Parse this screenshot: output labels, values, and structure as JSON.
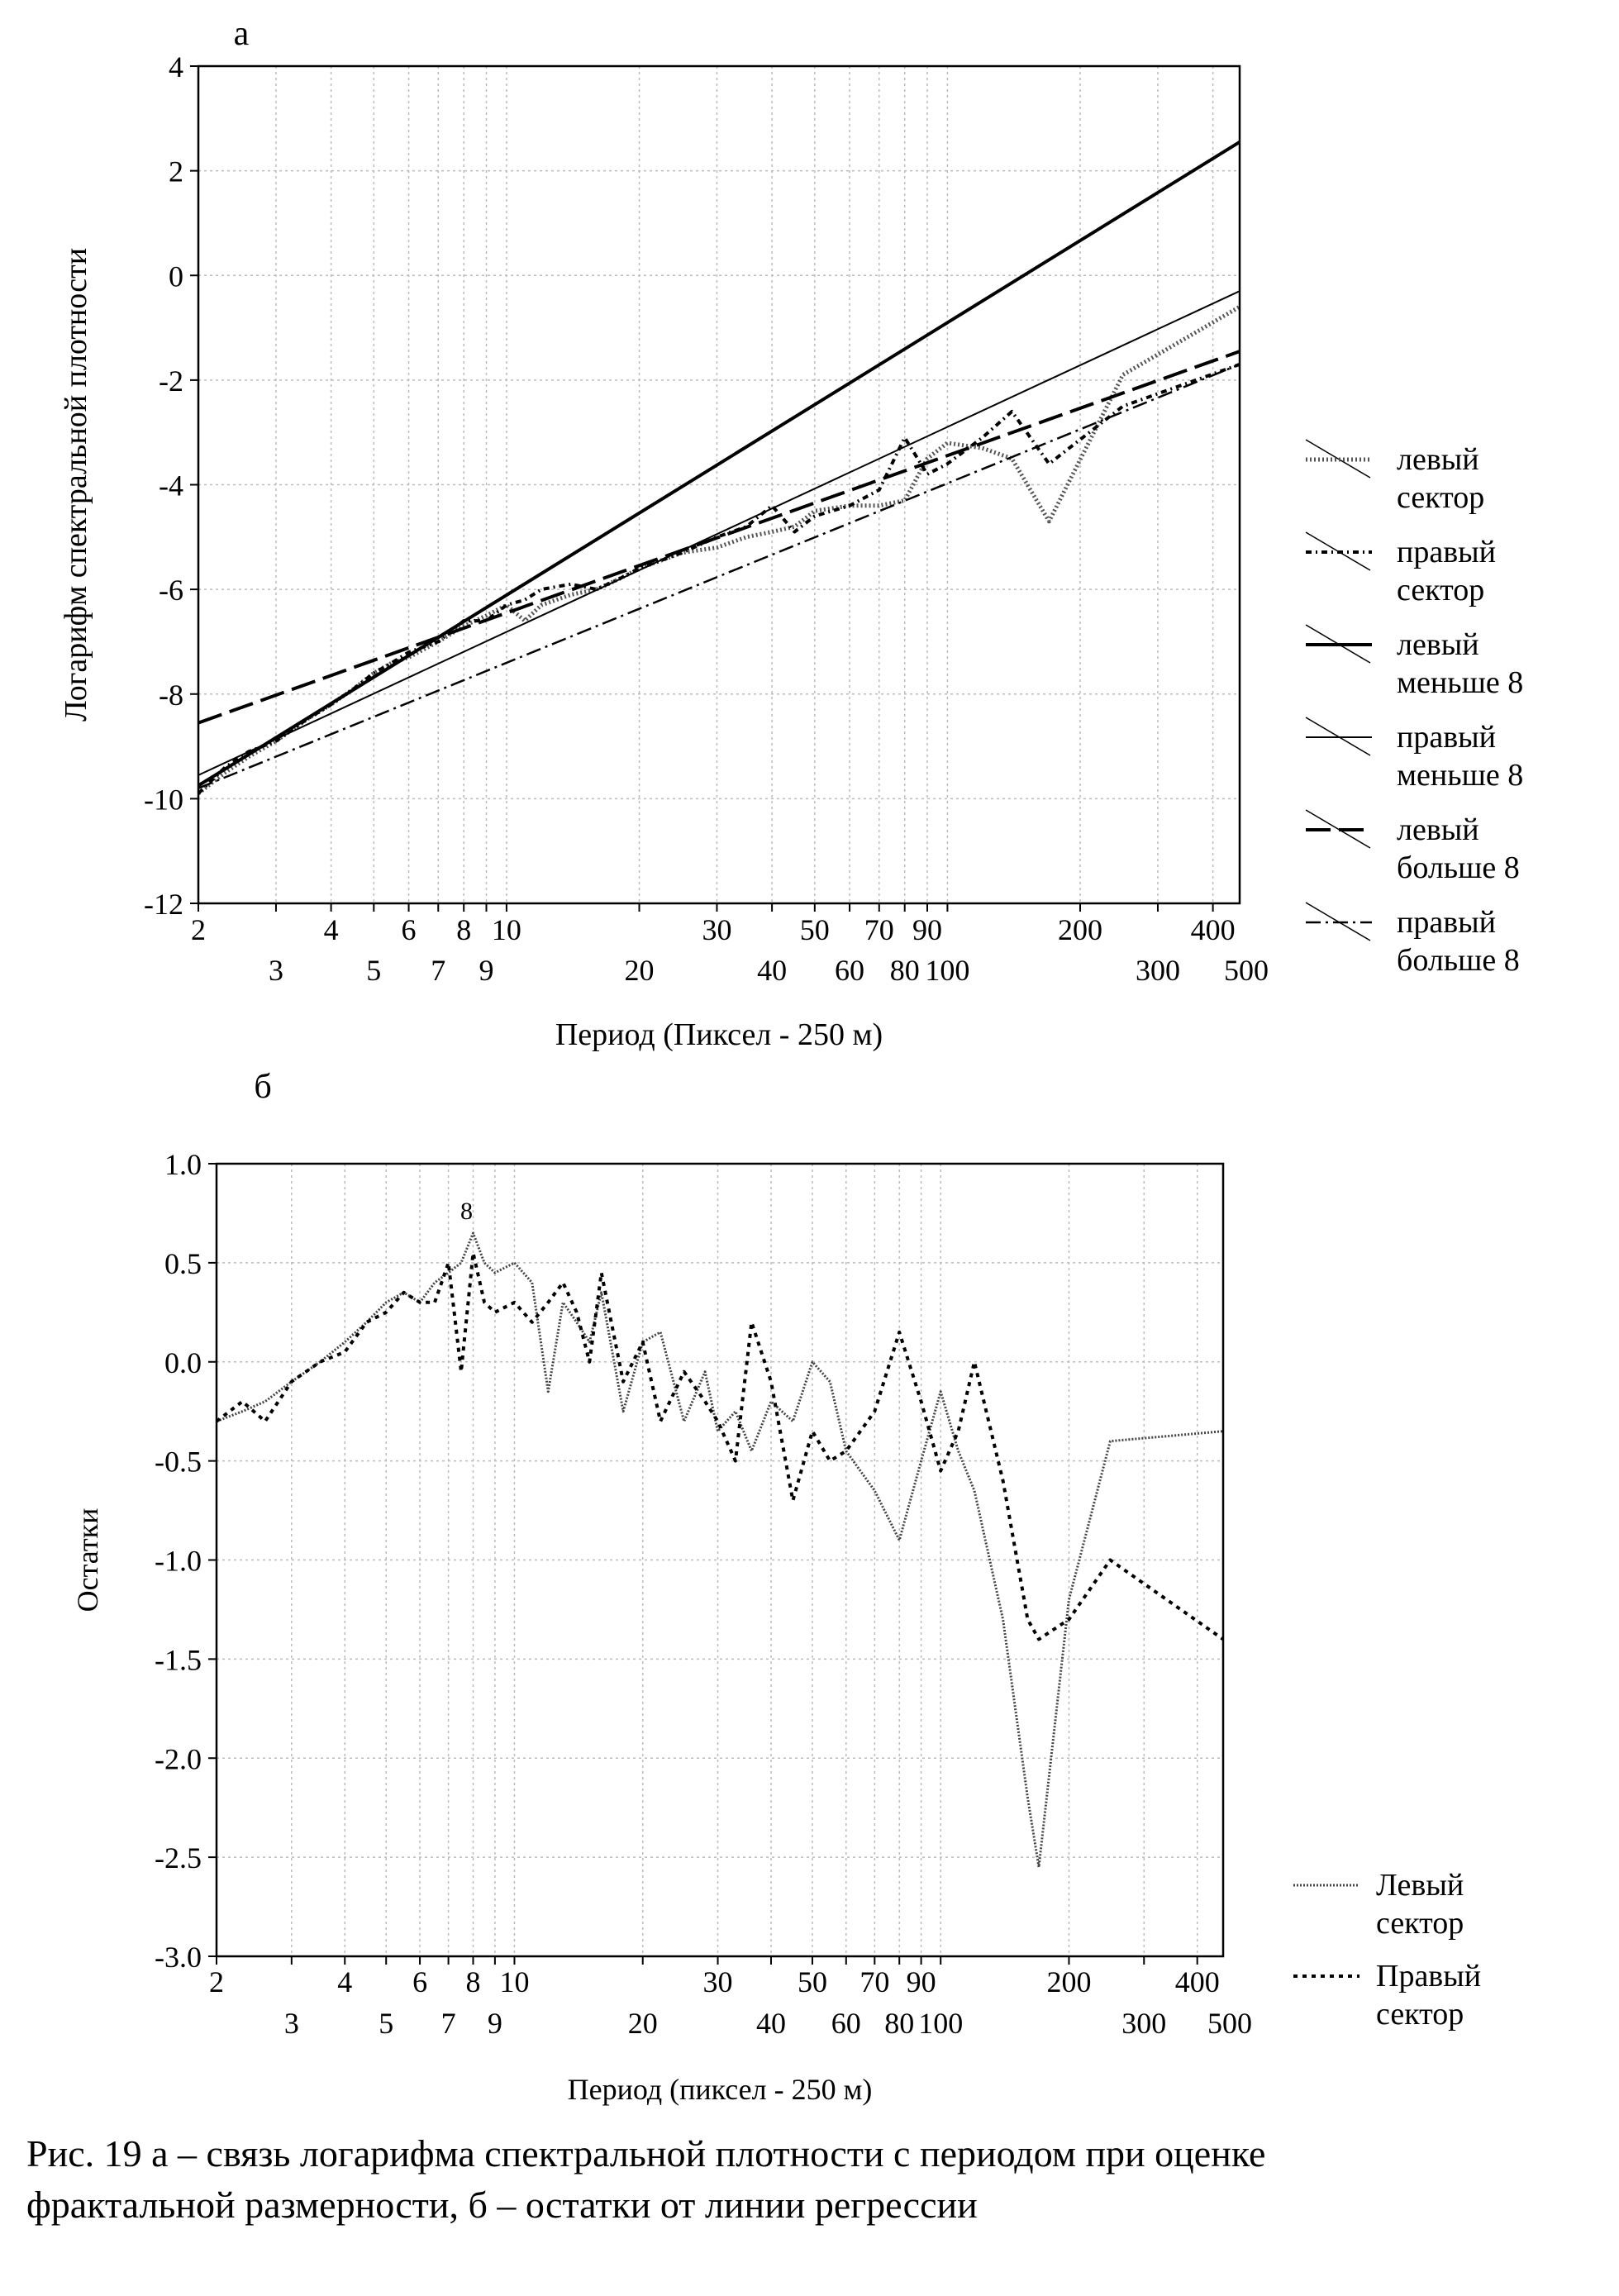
{
  "chart_data": [
    {
      "type": "line",
      "panel_label": "а",
      "xlabel": "Период (Пиксел - 250 м)",
      "ylabel": "Логарифм спектральной плотности",
      "xscale": "log",
      "xlim": [
        2,
        460
      ],
      "ylim": [
        -12,
        4
      ],
      "yticks": [
        "4",
        "2",
        "0",
        "-2",
        "-4",
        "-6",
        "-8",
        "-10",
        "-12"
      ],
      "xticks_upper": [
        "2",
        "4",
        "6",
        "8",
        "10",
        "30",
        "50",
        "70",
        "90",
        "200",
        "400"
      ],
      "xticks_lower": [
        "3",
        "5",
        "7",
        "9",
        "20",
        "40",
        "60",
        "80",
        "100",
        "300",
        "500"
      ],
      "grid": true,
      "legend_position": "right",
      "legend": [
        {
          "line1": "левый",
          "line2": "сектор"
        },
        {
          "line1": "правый",
          "line2": "сектор"
        },
        {
          "line1": "левый",
          "line2": "меньше 8"
        },
        {
          "line1": "правый",
          "line2": "меньше 8"
        },
        {
          "line1": "левый",
          "line2": "больше 8"
        },
        {
          "line1": "правый",
          "line2": "больше 8"
        }
      ],
      "series": [
        {
          "x": [
            2,
            2.3,
            2.6,
            3,
            3.5,
            4,
            4.5,
            5,
            5.5,
            6,
            7,
            8,
            9,
            10,
            11,
            12,
            14,
            16,
            18,
            20,
            25,
            30,
            35,
            40,
            45,
            50,
            60,
            70,
            80,
            90,
            100,
            120,
            140,
            170,
            250,
            460
          ],
          "y": [
            -9.9,
            -9.5,
            -9.2,
            -8.9,
            -8.5,
            -8.2,
            -7.9,
            -7.6,
            -7.4,
            -7.3,
            -7.0,
            -6.7,
            -6.5,
            -6.3,
            -6.6,
            -6.3,
            -6.1,
            -6.0,
            -5.8,
            -5.6,
            -5.3,
            -5.2,
            -5.0,
            -4.9,
            -4.8,
            -4.5,
            -4.4,
            -4.4,
            -4.3,
            -3.5,
            -3.2,
            -3.3,
            -3.5,
            -4.7,
            -1.9,
            -0.6
          ]
        },
        {
          "x": [
            2,
            2.3,
            2.6,
            3,
            3.5,
            4,
            4.5,
            5,
            5.5,
            6,
            7,
            8,
            9,
            10,
            11,
            12,
            14,
            16,
            18,
            20,
            25,
            30,
            35,
            40,
            45,
            50,
            60,
            70,
            80,
            90,
            100,
            120,
            140,
            170,
            250,
            460
          ],
          "y": [
            -9.9,
            -9.4,
            -9.1,
            -8.9,
            -8.5,
            -8.2,
            -7.9,
            -7.6,
            -7.4,
            -7.2,
            -7.0,
            -6.6,
            -6.6,
            -6.3,
            -6.2,
            -6.0,
            -5.9,
            -6.0,
            -5.8,
            -5.6,
            -5.3,
            -5.0,
            -4.8,
            -4.4,
            -4.9,
            -4.6,
            -4.4,
            -4.1,
            -3.1,
            -3.8,
            -3.6,
            -3.1,
            -2.6,
            -3.6,
            -2.5,
            -1.7
          ]
        },
        {
          "x": [
            2,
            460
          ],
          "y": [
            -9.75,
            2.55
          ]
        },
        {
          "x": [
            2,
            460
          ],
          "y": [
            -9.55,
            -0.3
          ]
        },
        {
          "x": [
            2,
            460
          ],
          "y": [
            -8.55,
            -1.45
          ]
        },
        {
          "x": [
            2,
            460
          ],
          "y": [
            -9.8,
            -1.7
          ]
        }
      ]
    },
    {
      "type": "line",
      "panel_label": "б",
      "xlabel": "Период (пиксел - 250 м)",
      "ylabel": "Остатки",
      "xscale": "log",
      "xlim": [
        2,
        460
      ],
      "ylim": [
        -3.0,
        1.0
      ],
      "yticks": [
        "1.0",
        "0.5",
        "0.0",
        "-0.5",
        "-1.0",
        "-1.5",
        "-2.0",
        "-2.5",
        "-3.0"
      ],
      "xticks_upper": [
        "2",
        "4",
        "6",
        "8",
        "10",
        "30",
        "50",
        "70",
        "90",
        "200",
        "400"
      ],
      "xticks_lower": [
        "3",
        "5",
        "7",
        "9",
        "20",
        "40",
        "60",
        "80",
        "100",
        "300",
        "500"
      ],
      "grid": true,
      "annotation": "8",
      "legend_position": "right",
      "legend": [
        {
          "line1": "Левый",
          "line2": "сектор"
        },
        {
          "line1": "Правый",
          "line2": "сектор"
        }
      ],
      "series": [
        {
          "x": [
            2,
            2.3,
            2.6,
            3,
            3.5,
            4,
            4.5,
            5,
            5.5,
            6,
            6.5,
            7,
            7.5,
            8,
            8.5,
            9,
            10,
            11,
            12,
            13,
            14,
            15,
            16,
            18,
            20,
            22,
            25,
            28,
            30,
            33,
            36,
            40,
            45,
            50,
            55,
            60,
            70,
            80,
            90,
            100,
            110,
            120,
            140,
            160,
            170,
            200,
            250,
            460
          ],
          "y": [
            -0.3,
            -0.25,
            -0.2,
            -0.1,
            0.0,
            0.1,
            0.2,
            0.3,
            0.35,
            0.3,
            0.4,
            0.45,
            0.5,
            0.65,
            0.5,
            0.45,
            0.5,
            0.4,
            -0.15,
            0.3,
            0.2,
            0.1,
            0.35,
            -0.25,
            0.1,
            0.15,
            -0.3,
            -0.05,
            -0.35,
            -0.25,
            -0.45,
            -0.2,
            -0.3,
            0.0,
            -0.1,
            -0.45,
            -0.65,
            -0.9,
            -0.5,
            -0.15,
            -0.45,
            -0.65,
            -1.3,
            -2.2,
            -2.55,
            -1.2,
            -0.4,
            -0.35
          ]
        },
        {
          "x": [
            2,
            2.3,
            2.6,
            3,
            3.5,
            4,
            4.5,
            5,
            5.5,
            6,
            6.5,
            7,
            7.5,
            8,
            8.5,
            9,
            10,
            11,
            12,
            13,
            14,
            15,
            16,
            18,
            20,
            22,
            25,
            28,
            30,
            33,
            36,
            40,
            45,
            50,
            55,
            60,
            70,
            80,
            90,
            100,
            110,
            120,
            140,
            160,
            170,
            200,
            250,
            460
          ],
          "y": [
            -0.3,
            -0.2,
            -0.3,
            -0.1,
            0.0,
            0.05,
            0.2,
            0.25,
            0.35,
            0.3,
            0.3,
            0.5,
            -0.05,
            0.55,
            0.3,
            0.25,
            0.3,
            0.2,
            0.3,
            0.4,
            0.25,
            0.0,
            0.45,
            -0.1,
            0.1,
            -0.3,
            -0.05,
            -0.2,
            -0.3,
            -0.5,
            0.2,
            -0.1,
            -0.7,
            -0.35,
            -0.5,
            -0.45,
            -0.25,
            0.15,
            -0.2,
            -0.55,
            -0.35,
            0.0,
            -0.6,
            -1.3,
            -1.4,
            -1.3,
            -1.0,
            -1.4
          ]
        }
      ]
    }
  ],
  "caption": {
    "line1": "Рис. 19 а – связь логарифма спектральной плотности с периодом при оценке",
    "line2": "фрактальной размерности, б – остатки от линии регрессии"
  }
}
